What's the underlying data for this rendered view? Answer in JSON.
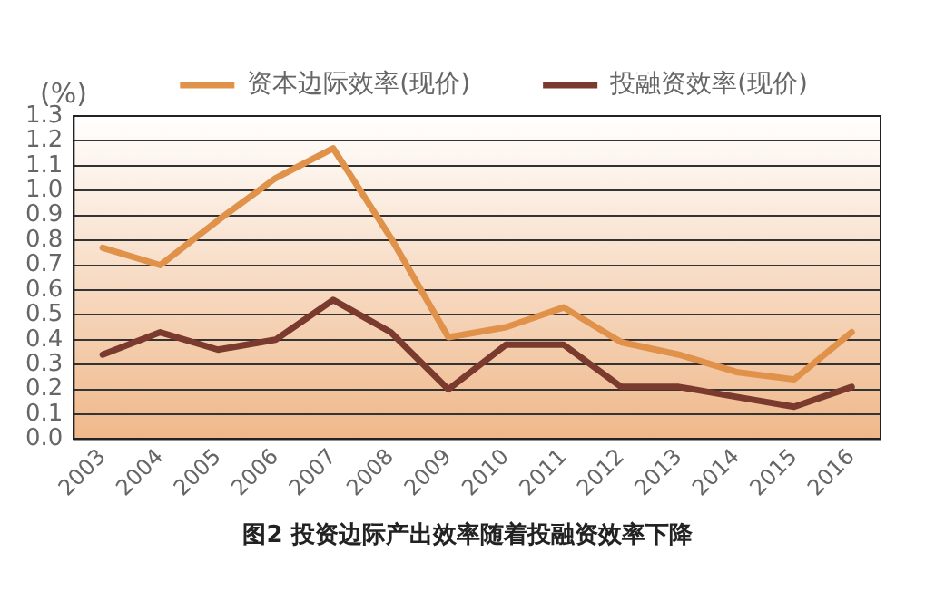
{
  "chart_data": {
    "type": "line",
    "ylabel": "(%)",
    "annotations": [
      "图2  投资边际产出效率随着投融资效率下降"
    ],
    "categories": [
      "2003",
      "2004",
      "2005",
      "2006",
      "2007",
      "2008",
      "2009",
      "2010",
      "2011",
      "2012",
      "2013",
      "2014",
      "2015",
      "2016"
    ],
    "series": [
      {
        "name": "资本边际效率(现价)",
        "color": "#e0914a",
        "values": [
          0.77,
          0.7,
          0.88,
          1.05,
          1.17,
          0.81,
          0.41,
          0.45,
          0.53,
          0.39,
          0.34,
          0.27,
          0.24,
          0.43
        ]
      },
      {
        "name": "投融资效率(现价)",
        "color": "#7a3a2e",
        "values": [
          0.34,
          0.43,
          0.36,
          0.4,
          0.56,
          0.43,
          0.2,
          0.38,
          0.38,
          0.21,
          0.21,
          0.17,
          0.13,
          0.21
        ]
      }
    ],
    "ylim": [
      0,
      1.3
    ],
    "yticks": [
      {
        "value": 0,
        "label": "0.0"
      },
      {
        "value": 0.1,
        "label": "0.1"
      },
      {
        "value": 0.2,
        "label": "0.2"
      },
      {
        "value": 0.3,
        "label": "0.3"
      },
      {
        "value": 0.4,
        "label": "0.4"
      },
      {
        "value": 0.5,
        "label": "0.5"
      },
      {
        "value": 0.6,
        "label": "0.6"
      },
      {
        "value": 0.7,
        "label": "0.7"
      },
      {
        "value": 0.8,
        "label": "0.8"
      },
      {
        "value": 0.9,
        "label": "0.9"
      },
      {
        "value": 1.0,
        "label": "1.0"
      },
      {
        "value": 1.1,
        "label": "1.1"
      },
      {
        "value": 1.2,
        "label": "1.2"
      },
      {
        "value": 1.3,
        "label": "1.3"
      }
    ],
    "grid": "y",
    "legend": "top",
    "marker": "none",
    "line_style": "solid"
  }
}
